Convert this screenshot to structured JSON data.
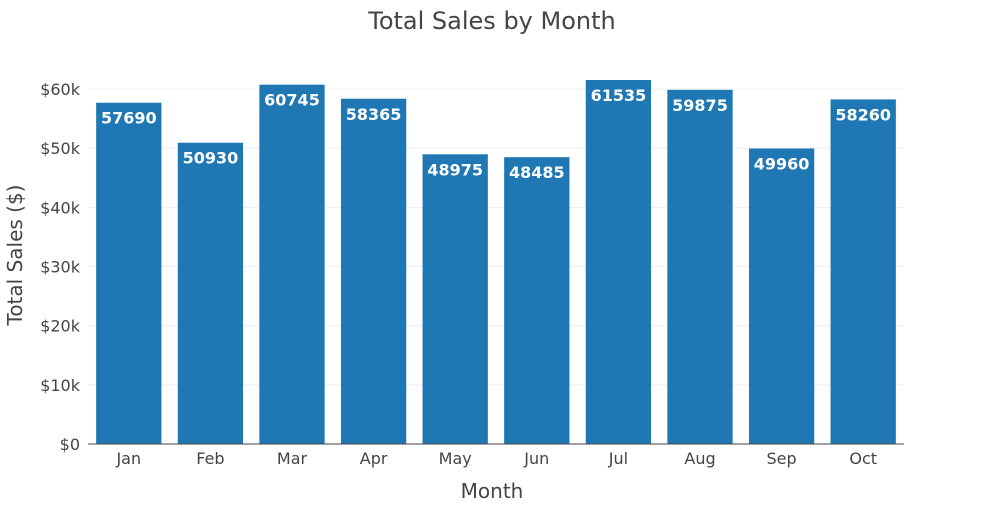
{
  "chart_data": {
    "type": "bar",
    "title": "Total Sales by Month",
    "xlabel": "Month",
    "ylabel": "Total Sales ($)",
    "categories": [
      "Jan",
      "Feb",
      "Mar",
      "Apr",
      "May",
      "Jun",
      "Jul",
      "Aug",
      "Sep",
      "Oct"
    ],
    "values": [
      57690,
      50930,
      60745,
      58365,
      48975,
      48485,
      61535,
      59875,
      49960,
      58260
    ],
    "value_labels": [
      "57690",
      "50930",
      "60745",
      "58365",
      "48975",
      "48485",
      "61535",
      "59875",
      "49960",
      "58260"
    ],
    "ylim": [
      0,
      61535
    ],
    "yticks": [
      0,
      10000,
      20000,
      30000,
      40000,
      50000,
      60000
    ],
    "ytick_labels": [
      "$0",
      "$10k",
      "$20k",
      "$30k",
      "$40k",
      "$50k",
      "$60k"
    ],
    "grid": true,
    "bar_color": "#1f77b4",
    "legend": "none"
  }
}
